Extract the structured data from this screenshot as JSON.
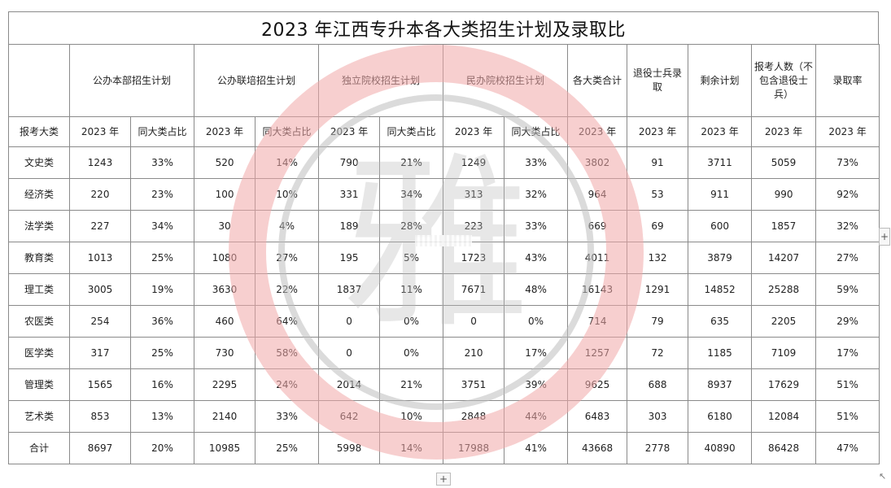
{
  "title": "2023 年江西专升本各大类招生计划及录取比",
  "headers": {
    "group1": "公办本部招生计划",
    "group2": "公办联培招生计划",
    "group3": "独立院校招生计划",
    "group4": "民办院校招生计划",
    "total": "各大类合计",
    "veteran": "退役士兵录取",
    "remaining": "剩余计划",
    "applicants": "报考人数（不包含退役士兵）",
    "rate": "录取率",
    "category": "报考大类",
    "year": "2023 年",
    "share": "同大类占比"
  },
  "rows": [
    {
      "cat": "文史类",
      "c1": "1243",
      "p1": "33%",
      "c2": "520",
      "p2": "14%",
      "c3": "790",
      "p3": "21%",
      "c4": "1249",
      "p4": "33%",
      "total": "3802",
      "vet": "91",
      "rem": "3711",
      "apps": "5059",
      "rate": "73%"
    },
    {
      "cat": "经济类",
      "c1": "220",
      "p1": "23%",
      "c2": "100",
      "p2": "10%",
      "c3": "331",
      "p3": "34%",
      "c4": "313",
      "p4": "32%",
      "total": "964",
      "vet": "53",
      "rem": "911",
      "apps": "990",
      "rate": "92%"
    },
    {
      "cat": "法学类",
      "c1": "227",
      "p1": "34%",
      "c2": "30",
      "p2": "4%",
      "c3": "189",
      "p3": "28%",
      "c4": "223",
      "p4": "33%",
      "total": "669",
      "vet": "69",
      "rem": "600",
      "apps": "1857",
      "rate": "32%"
    },
    {
      "cat": "教育类",
      "c1": "1013",
      "p1": "25%",
      "c2": "1080",
      "p2": "27%",
      "c3": "195",
      "p3": "5%",
      "c4": "1723",
      "p4": "43%",
      "total": "4011",
      "vet": "132",
      "rem": "3879",
      "apps": "14207",
      "rate": "27%"
    },
    {
      "cat": "理工类",
      "c1": "3005",
      "p1": "19%",
      "c2": "3630",
      "p2": "22%",
      "c3": "1837",
      "p3": "11%",
      "c4": "7671",
      "p4": "48%",
      "total": "16143",
      "vet": "1291",
      "rem": "14852",
      "apps": "25288",
      "rate": "59%"
    },
    {
      "cat": "农医类",
      "c1": "254",
      "p1": "36%",
      "c2": "460",
      "p2": "64%",
      "c3": "0",
      "p3": "0%",
      "c4": "0",
      "p4": "0%",
      "total": "714",
      "vet": "79",
      "rem": "635",
      "apps": "2205",
      "rate": "29%"
    },
    {
      "cat": "医学类",
      "c1": "317",
      "p1": "25%",
      "c2": "730",
      "p2": "58%",
      "c3": "0",
      "p3": "0%",
      "c4": "210",
      "p4": "17%",
      "total": "1257",
      "vet": "72",
      "rem": "1185",
      "apps": "7109",
      "rate": "17%"
    },
    {
      "cat": "管理类",
      "c1": "1565",
      "p1": "16%",
      "c2": "2295",
      "p2": "24%",
      "c3": "2014",
      "p3": "21%",
      "c4": "3751",
      "p4": "39%",
      "total": "9625",
      "vet": "688",
      "rem": "8937",
      "apps": "17629",
      "rate": "51%"
    },
    {
      "cat": "艺术类",
      "c1": "853",
      "p1": "13%",
      "c2": "2140",
      "p2": "33%",
      "c3": "642",
      "p3": "10%",
      "c4": "2848",
      "p4": "44%",
      "total": "6483",
      "vet": "303",
      "rem": "6180",
      "apps": "12084",
      "rate": "51%"
    },
    {
      "cat": "合计",
      "c1": "8697",
      "p1": "20%",
      "c2": "10985",
      "p2": "25%",
      "c3": "5998",
      "p3": "14%",
      "c4": "17988",
      "p4": "41%",
      "total": "43668",
      "vet": "2778",
      "rem": "40890",
      "apps": "86428",
      "rate": "47%"
    }
  ],
  "handles": {
    "side": "+",
    "bottom": "+",
    "corner": "↖"
  },
  "watermark": {
    "glyph": "雅",
    "ring_color": "#f0a8a8",
    "inner_color": "#bdbdbd"
  }
}
